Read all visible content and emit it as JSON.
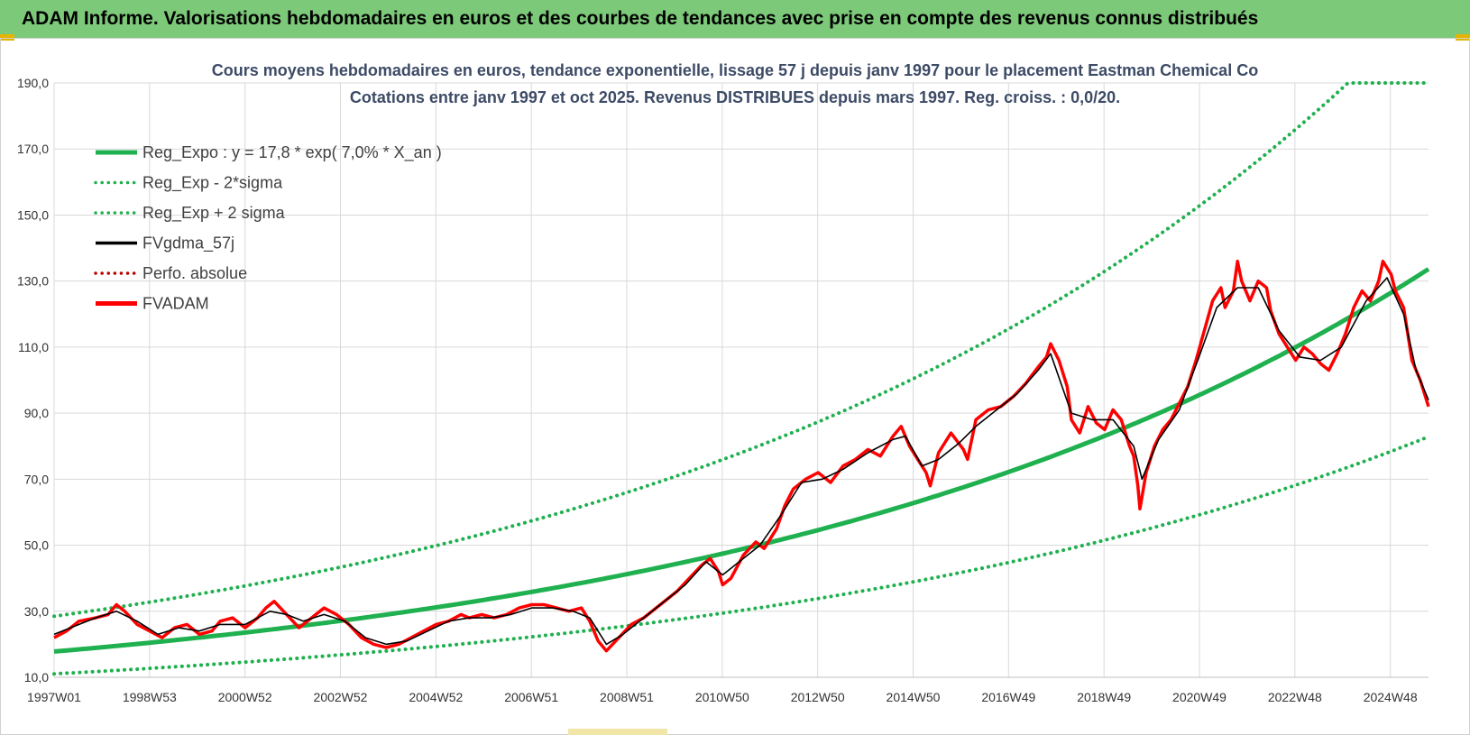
{
  "banner": {
    "title": "ADAM Informe. Valorisations hebdomadaires en euros et des courbes de tendances avec prise en compte des revenus connus distribués"
  },
  "colors": {
    "banner_bg": "#7dc97a",
    "trend_green": "#1fb04f",
    "fvadam_red": "#ff0000",
    "perfo_red": "#c00000",
    "gdma_black": "#000000",
    "title_text": "#3d4b66"
  },
  "chart_data": {
    "type": "line",
    "title": "Cours moyens hebdomadaires en euros, tendance exponentielle, lissage 57 j depuis janv 1997 pour le placement Eastman Chemical Co",
    "subtitle": "Cotations entre janv 1997 et oct 2025. Revenus DISTRIBUES depuis mars 1997. Reg. croiss. : 0,0/20.",
    "ylim": [
      10,
      190
    ],
    "y_ticks": [
      "10,0",
      "30,0",
      "50,0",
      "70,0",
      "90,0",
      "110,0",
      "130,0",
      "150,0",
      "170,0",
      "190,0"
    ],
    "x_range_years": [
      1997.0,
      2025.8
    ],
    "x_ticks": [
      {
        "label": "1997W01",
        "year": 1997.0
      },
      {
        "label": "1998W53",
        "year": 1999.0
      },
      {
        "label": "2000W52",
        "year": 2001.0
      },
      {
        "label": "2002W52",
        "year": 2003.0
      },
      {
        "label": "2004W52",
        "year": 2005.0
      },
      {
        "label": "2006W51",
        "year": 2007.0
      },
      {
        "label": "2008W51",
        "year": 2009.0
      },
      {
        "label": "2010W50",
        "year": 2011.0
      },
      {
        "label": "2012W50",
        "year": 2013.0
      },
      {
        "label": "2014W50",
        "year": 2015.0
      },
      {
        "label": "2016W49",
        "year": 2017.0
      },
      {
        "label": "2018W49",
        "year": 2019.0
      },
      {
        "label": "2020W49",
        "year": 2021.0
      },
      {
        "label": "2022W48",
        "year": 2023.0
      },
      {
        "label": "2024W48",
        "year": 2025.0
      }
    ],
    "grid": true,
    "legend_position": "top-left",
    "regression": {
      "a": 17.8,
      "rate": 0.07,
      "minus_2sigma_factor": 0.62,
      "plus_2sigma_factor": 1.6
    },
    "legend": [
      {
        "label": "Reg_Expo : y = 17,8 * exp( 7,0% *  X_an )",
        "style": "solid",
        "color": "#1fb04f"
      },
      {
        "label": "Reg_Exp - 2*sigma",
        "style": "dotted",
        "color": "#1fb04f"
      },
      {
        "label": "Reg_Exp + 2 sigma",
        "style": "dotted",
        "color": "#1fb04f"
      },
      {
        "label": "FVgdma_57j",
        "style": "solid",
        "color": "#000000"
      },
      {
        "label": "Perfo. absolue",
        "style": "dotted",
        "color": "#c00000"
      },
      {
        "label": "FVADAM",
        "style": "solid",
        "color": "#ff0000"
      }
    ],
    "fvadam": [
      [
        1997.0,
        22
      ],
      [
        1997.3,
        24
      ],
      [
        1997.6,
        27
      ],
      [
        1998.0,
        28
      ],
      [
        1998.3,
        29
      ],
      [
        1998.5,
        32
      ],
      [
        1998.7,
        30
      ],
      [
        1999.0,
        26
      ],
      [
        1999.3,
        24
      ],
      [
        1999.6,
        22
      ],
      [
        1999.9,
        25
      ],
      [
        2000.2,
        26
      ],
      [
        2000.5,
        23
      ],
      [
        2000.8,
        24
      ],
      [
        2001.0,
        27
      ],
      [
        2001.3,
        28
      ],
      [
        2001.6,
        25
      ],
      [
        2001.9,
        28
      ],
      [
        2002.1,
        31
      ],
      [
        2002.3,
        33
      ],
      [
        2002.6,
        29
      ],
      [
        2002.9,
        25
      ],
      [
        2003.2,
        28
      ],
      [
        2003.5,
        31
      ],
      [
        2003.8,
        29
      ],
      [
        2004.1,
        26
      ],
      [
        2004.4,
        22
      ],
      [
        2004.7,
        20
      ],
      [
        2005.0,
        19
      ],
      [
        2005.3,
        20
      ],
      [
        2005.6,
        22
      ],
      [
        2005.9,
        24
      ],
      [
        2006.2,
        26
      ],
      [
        2006.5,
        27
      ],
      [
        2006.8,
        29
      ],
      [
        2007.0,
        28
      ],
      [
        2007.3,
        29
      ],
      [
        2007.6,
        28
      ],
      [
        2007.9,
        29
      ],
      [
        2008.2,
        31
      ],
      [
        2008.5,
        32
      ],
      [
        2008.8,
        32
      ],
      [
        2009.1,
        31
      ],
      [
        2009.4,
        30
      ],
      [
        2009.7,
        31
      ],
      [
        2009.9,
        27
      ],
      [
        2010.1,
        21
      ],
      [
        2010.3,
        18
      ],
      [
        2010.6,
        22
      ],
      [
        2010.9,
        26
      ],
      [
        2011.2,
        28
      ],
      [
        2011.5,
        31
      ],
      [
        2011.8,
        34
      ],
      [
        2012.0,
        36
      ],
      [
        2012.3,
        40
      ],
      [
        2012.6,
        44
      ],
      [
        2012.8,
        46
      ],
      [
        2013.0,
        42
      ],
      [
        2013.1,
        38
      ],
      [
        2013.3,
        40
      ],
      [
        2013.6,
        47
      ],
      [
        2013.9,
        51
      ],
      [
        2014.1,
        49
      ],
      [
        2014.4,
        55
      ],
      [
        2014.6,
        62
      ],
      [
        2014.8,
        67
      ],
      [
        2015.1,
        70
      ],
      [
        2015.4,
        72
      ],
      [
        2015.7,
        69
      ],
      [
        2016.0,
        74
      ],
      [
        2016.3,
        76
      ],
      [
        2016.6,
        79
      ],
      [
        2016.9,
        77
      ],
      [
        2017.2,
        83
      ],
      [
        2017.4,
        86
      ],
      [
        2017.6,
        80
      ],
      [
        2017.8,
        76
      ],
      [
        2018.0,
        72
      ],
      [
        2018.1,
        68
      ],
      [
        2018.3,
        78
      ],
      [
        2018.6,
        84
      ],
      [
        2018.9,
        79
      ],
      [
        2019.0,
        76
      ],
      [
        2019.2,
        88
      ],
      [
        2019.5,
        91
      ],
      [
        2019.8,
        92
      ],
      [
        2020.1,
        95
      ],
      [
        2020.4,
        99
      ],
      [
        2020.7,
        104
      ],
      [
        2020.9,
        107
      ],
      [
        2021.0,
        111
      ],
      [
        2021.2,
        106
      ],
      [
        2021.4,
        98
      ],
      [
        2021.5,
        88
      ],
      [
        2021.7,
        84
      ],
      [
        2021.9,
        92
      ],
      [
        2022.1,
        87
      ],
      [
        2022.3,
        85
      ],
      [
        2022.5,
        91
      ],
      [
        2022.7,
        88
      ],
      [
        2022.9,
        80
      ],
      [
        2023.0,
        77
      ],
      [
        2023.1,
        68
      ],
      [
        2023.15,
        61
      ],
      [
        2023.3,
        72
      ],
      [
        2023.5,
        80
      ],
      [
        2023.7,
        85
      ],
      [
        2023.9,
        88
      ],
      [
        2024.1,
        93
      ],
      [
        2024.3,
        98
      ],
      [
        2024.5,
        106
      ],
      [
        2024.7,
        115
      ],
      [
        2024.9,
        124
      ],
      [
        2025.1,
        128
      ],
      [
        2025.2,
        122
      ],
      [
        2025.4,
        127
      ],
      [
        2025.5,
        136
      ],
      [
        2025.6,
        130
      ],
      [
        2025.8,
        124
      ],
      [
        2026.0,
        130
      ],
      [
        2026.2,
        128
      ],
      [
        2026.3,
        121
      ],
      [
        2026.5,
        114
      ],
      [
        2026.7,
        110
      ],
      [
        2026.9,
        106
      ],
      [
        2027.1,
        110
      ],
      [
        2027.3,
        108
      ],
      [
        2027.5,
        105
      ],
      [
        2027.7,
        103
      ],
      [
        2027.9,
        108
      ],
      [
        2028.1,
        114
      ],
      [
        2028.3,
        122
      ],
      [
        2028.5,
        127
      ],
      [
        2028.7,
        124
      ],
      [
        2028.9,
        130
      ],
      [
        2029.0,
        136
      ],
      [
        2029.2,
        132
      ],
      [
        2029.3,
        127
      ],
      [
        2029.5,
        122
      ],
      [
        2029.6,
        114
      ],
      [
        2029.7,
        106
      ],
      [
        2029.9,
        100
      ],
      [
        2030.0,
        96
      ],
      [
        2030.1,
        92
      ]
    ],
    "fvgdma_57j": [
      [
        1997.0,
        23
      ],
      [
        1997.6,
        26
      ],
      [
        1998.0,
        28
      ],
      [
        1998.5,
        30
      ],
      [
        1999.0,
        27
      ],
      [
        1999.5,
        23
      ],
      [
        2000.0,
        25
      ],
      [
        2000.5,
        24
      ],
      [
        2001.0,
        26
      ],
      [
        2001.6,
        26
      ],
      [
        2002.2,
        30
      ],
      [
        2002.6,
        29
      ],
      [
        2003.0,
        27
      ],
      [
        2003.5,
        29
      ],
      [
        2004.0,
        27
      ],
      [
        2004.5,
        22
      ],
      [
        2005.0,
        20
      ],
      [
        2005.5,
        21
      ],
      [
        2006.0,
        24
      ],
      [
        2006.5,
        27
      ],
      [
        2007.0,
        28
      ],
      [
        2007.5,
        28
      ],
      [
        2008.0,
        29
      ],
      [
        2008.5,
        31
      ],
      [
        2009.0,
        31
      ],
      [
        2009.5,
        30
      ],
      [
        2009.9,
        28
      ],
      [
        2010.3,
        20
      ],
      [
        2010.7,
        23
      ],
      [
        2011.2,
        28
      ],
      [
        2011.7,
        33
      ],
      [
        2012.2,
        38
      ],
      [
        2012.7,
        45
      ],
      [
        2013.1,
        41
      ],
      [
        2013.5,
        45
      ],
      [
        2014.0,
        50
      ],
      [
        2014.5,
        59
      ],
      [
        2015.0,
        69
      ],
      [
        2015.5,
        70
      ],
      [
        2016.0,
        73
      ],
      [
        2016.6,
        78
      ],
      [
        2017.2,
        82
      ],
      [
        2017.5,
        83
      ],
      [
        2017.9,
        74
      ],
      [
        2018.3,
        76
      ],
      [
        2018.8,
        81
      ],
      [
        2019.2,
        86
      ],
      [
        2019.7,
        91
      ],
      [
        2020.2,
        96
      ],
      [
        2020.7,
        103
      ],
      [
        2021.0,
        108
      ],
      [
        2021.5,
        90
      ],
      [
        2022.0,
        88
      ],
      [
        2022.5,
        88
      ],
      [
        2023.0,
        80
      ],
      [
        2023.2,
        70
      ],
      [
        2023.6,
        82
      ],
      [
        2024.1,
        91
      ],
      [
        2024.6,
        108
      ],
      [
        2025.0,
        122
      ],
      [
        2025.5,
        128
      ],
      [
        2026.0,
        128
      ],
      [
        2026.5,
        115
      ],
      [
        2027.0,
        107
      ],
      [
        2027.5,
        106
      ],
      [
        2028.0,
        110
      ],
      [
        2028.6,
        124
      ],
      [
        2029.1,
        131
      ],
      [
        2029.5,
        120
      ],
      [
        2029.8,
        103
      ],
      [
        2030.1,
        94
      ]
    ]
  }
}
